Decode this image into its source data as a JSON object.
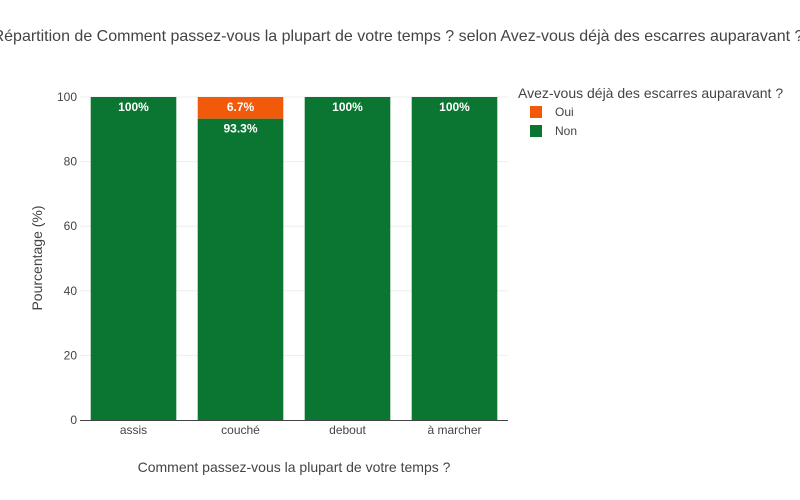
{
  "chart_data": {
    "type": "bar",
    "stacked": true,
    "title": "Répartition de Comment passez-vous la plupart de votre temps ? selon Avez-vous déjà des escarres auparavant ?",
    "xlabel": "Comment passez-vous la plupart de votre temps ?",
    "ylabel": "Pourcentage (%)",
    "ylim": [
      0,
      100
    ],
    "yticks": [
      0,
      20,
      40,
      60,
      80,
      100
    ],
    "grid": true,
    "categories": [
      "assis",
      "couché",
      "debout",
      "à marcher"
    ],
    "series": [
      {
        "name": "Non",
        "color": "#0b7532",
        "values": [
          100,
          93.3,
          100,
          100
        ],
        "labels": [
          "100%",
          "93.3%",
          "100%",
          "100%"
        ]
      },
      {
        "name": "Oui",
        "color": "#f05a0a",
        "values": [
          0,
          6.7,
          0,
          0
        ],
        "labels": [
          "",
          "6.7%",
          "",
          ""
        ]
      }
    ],
    "legend": {
      "title": "Avez-vous déjà des escarres auparavant ?",
      "placement": "top-right",
      "order": [
        "Oui",
        "Non"
      ]
    }
  }
}
